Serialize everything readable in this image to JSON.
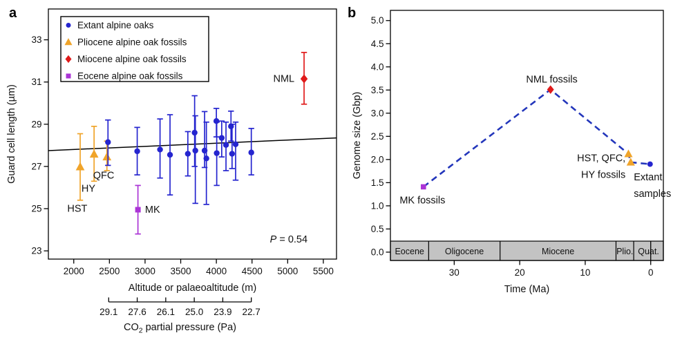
{
  "figure": {
    "background": "#ffffff"
  },
  "colors": {
    "extant_blue": "#2525cf",
    "pliocene_orange": "#f0a42a",
    "miocene_red": "#e01a1a",
    "eocene_purple": "#ab34d6",
    "dash_line_blue": "#2336bb",
    "geo_band_gray": "#c3c3c3",
    "axis_black": "#000000"
  },
  "chart_data": [
    {
      "type": "scatter",
      "panel_label": "a",
      "xlabel": "Altitude or palaeoaltitude (m)",
      "ylabel": "Guard cell length (µm)",
      "xlim": [
        1644,
        5685
      ],
      "ylim": [
        22.61,
        34.46
      ],
      "xticks": {
        "values": [
          2000,
          2500,
          3000,
          3500,
          4000,
          4500,
          5000,
          5500
        ],
        "labels": [
          "2000",
          "2500",
          "3000",
          "3500",
          "4000",
          "4500",
          "5000",
          "5500"
        ]
      },
      "yticks": {
        "values": [
          23,
          25,
          27,
          29,
          31,
          33
        ],
        "labels": [
          "23",
          "25",
          "27",
          "29",
          "31",
          "33"
        ]
      },
      "legend": {
        "items": [
          {
            "label": "Extant alpine oaks",
            "marker": "circle",
            "color": "#2525cf"
          },
          {
            "label": "Pliocene alpine oak fossils",
            "marker": "triangle",
            "color": "#f0a42a"
          },
          {
            "label": "Miocene alpine oak fossils",
            "marker": "diamond",
            "color": "#e01a1a"
          },
          {
            "label": "Eocene alpine oak fossils",
            "marker": "square",
            "color": "#ab34d6"
          }
        ]
      },
      "trendline": {
        "x": [
          1644,
          5685
        ],
        "y": [
          27.75,
          28.35
        ],
        "color": "#000000"
      },
      "series": [
        {
          "name": "Pliocene alpine oak fossils",
          "marker": "triangle",
          "color": "#f0a42a",
          "points": [
            [
              2090,
              26.98,
              25.4,
              28.55
            ],
            [
              2285,
              27.58,
              26.3,
              28.9
            ],
            [
              2465,
              27.45,
              26.8,
              28.2
            ]
          ]
        },
        {
          "name": "Eocene alpine oak fossils",
          "marker": "square",
          "color": "#ab34d6",
          "points": [
            [
              2900,
              24.95,
              23.8,
              26.1
            ]
          ]
        },
        {
          "name": "Miocene alpine oak fossils",
          "marker": "diamond",
          "color": "#e01a1a",
          "points": [
            [
              5230,
              31.15,
              29.95,
              32.4
            ]
          ]
        },
        {
          "name": "Extant alpine oaks",
          "marker": "circle",
          "color": "#2525cf",
          "points": [
            [
              2480,
              28.15,
              27.05,
              29.2
            ],
            [
              2890,
              27.72,
              26.6,
              28.85
            ],
            [
              3210,
              27.8,
              26.45,
              29.25
            ],
            [
              3350,
              27.55,
              25.65,
              29.45
            ],
            [
              3600,
              27.6,
              26.55,
              28.65
            ],
            [
              3695,
              28.6,
              27.0,
              30.35
            ],
            [
              3705,
              27.75,
              25.25,
              29.4
            ],
            [
              3835,
              27.75,
              26.95,
              29.6
            ],
            [
              3860,
              27.38,
              25.2,
              29.1
            ],
            [
              4000,
              29.15,
              28.4,
              29.75
            ],
            [
              4005,
              27.63,
              26.1,
              29.1
            ],
            [
              4075,
              28.35,
              27.45,
              29.15
            ],
            [
              4135,
              28.02,
              26.8,
              29.1
            ],
            [
              4205,
              28.9,
              28.2,
              29.62
            ],
            [
              4220,
              27.6,
              26.9,
              29.0
            ],
            [
              4270,
              28.05,
              26.35,
              29.1
            ],
            [
              4490,
              27.66,
              26.6,
              28.8
            ]
          ]
        }
      ],
      "annotations": [
        {
          "parts": [
            {
              "t": "NML"
            }
          ],
          "x": 5095,
          "y": 31.0,
          "anchor": "end"
        },
        {
          "parts": [
            {
              "t": "QFC"
            }
          ],
          "x": 2420,
          "y": 26.42,
          "anchor": "middle"
        },
        {
          "parts": [
            {
              "t": "HY"
            }
          ],
          "x": 2206,
          "y": 25.8,
          "anchor": "middle"
        },
        {
          "parts": [
            {
              "t": "HST"
            }
          ],
          "x": 2050,
          "y": 24.85,
          "anchor": "middle"
        },
        {
          "parts": [
            {
              "t": "MK"
            }
          ],
          "x": 3000,
          "y": 24.8,
          "anchor": "start"
        },
        {
          "parts": [
            {
              "t": "P",
              "italic": true
            },
            {
              "t": " = 0.54"
            }
          ],
          "x": 5015,
          "y": 23.4,
          "anchor": "middle"
        }
      ],
      "secondary_axis": {
        "label_parts": [
          {
            "t": "CO"
          },
          {
            "t": "2",
            "sub": true
          },
          {
            "t": " partial pressure (Pa)"
          }
        ],
        "tick_positions": [
          2490,
          2890,
          3290,
          3690,
          4090,
          4490
        ],
        "tick_labels": [
          "29.1",
          "27.6",
          "26.1",
          "25.0",
          "23.9",
          "22.7"
        ]
      }
    },
    {
      "type": "line",
      "panel_label": "b",
      "xlabel": "Time (Ma)",
      "ylabel": "Genome size (Gbp)",
      "xlim": [
        39.74,
        -1.93
      ],
      "ylim": [
        -0.18,
        5.22
      ],
      "xticks": {
        "values": [
          30,
          20,
          10,
          0
        ],
        "labels": [
          "30",
          "20",
          "10",
          "0"
        ]
      },
      "yticks": {
        "values": [
          0,
          0.5,
          1,
          1.5,
          2,
          2.5,
          3,
          3.5,
          4,
          4.5,
          5
        ],
        "labels": [
          "0.0",
          "0.5",
          "1.0",
          "1.5",
          "2.0",
          "2.5",
          "3.0",
          "3.5",
          "4.0",
          "4.5",
          "5.0"
        ]
      },
      "line": {
        "color": "#2336bb",
        "dash": [
          9,
          6
        ],
        "width": 2.6,
        "x": [
          34.7,
          15.3,
          3.4,
          3.05,
          0.1
        ],
        "y": [
          1.41,
          3.51,
          2.12,
          1.94,
          1.9
        ]
      },
      "points": [
        {
          "x": 34.7,
          "y": 1.41,
          "marker": "square",
          "color": "#ab34d6"
        },
        {
          "x": 15.3,
          "y": 3.51,
          "marker": "diamond",
          "color": "#e01a1a"
        },
        {
          "x": 3.4,
          "y": 2.12,
          "marker": "triangle",
          "color": "#f0a42a"
        },
        {
          "x": 3.05,
          "y": 1.94,
          "marker": "triangle",
          "color": "#f0a42a"
        },
        {
          "x": 0.1,
          "y": 1.9,
          "marker": "circle",
          "color": "#2525cf"
        }
      ],
      "annotations": [
        {
          "lines": [
            "NML fossils"
          ],
          "x": 15.1,
          "y": 3.66,
          "anchor": "middle"
        },
        {
          "lines": [
            "MK fossils"
          ],
          "x": 34.85,
          "y": 1.05,
          "anchor": "middle"
        },
        {
          "lines": [
            "HST, QFC,",
            "HY fossils"
          ],
          "x": 3.85,
          "y": 1.96,
          "anchor": "end"
        },
        {
          "lines": [
            "Extant",
            "samples"
          ],
          "x": 2.58,
          "y": 1.55,
          "anchor": "start"
        }
      ],
      "geo_band": {
        "fill": "#c3c3c3",
        "border": "#000000",
        "boundaries": [
          33.9,
          23.0,
          5.3,
          2.6
        ],
        "labels": [
          "Eocene",
          "Oligocene",
          "Miocene",
          "Plio.",
          "Quat."
        ]
      }
    }
  ]
}
